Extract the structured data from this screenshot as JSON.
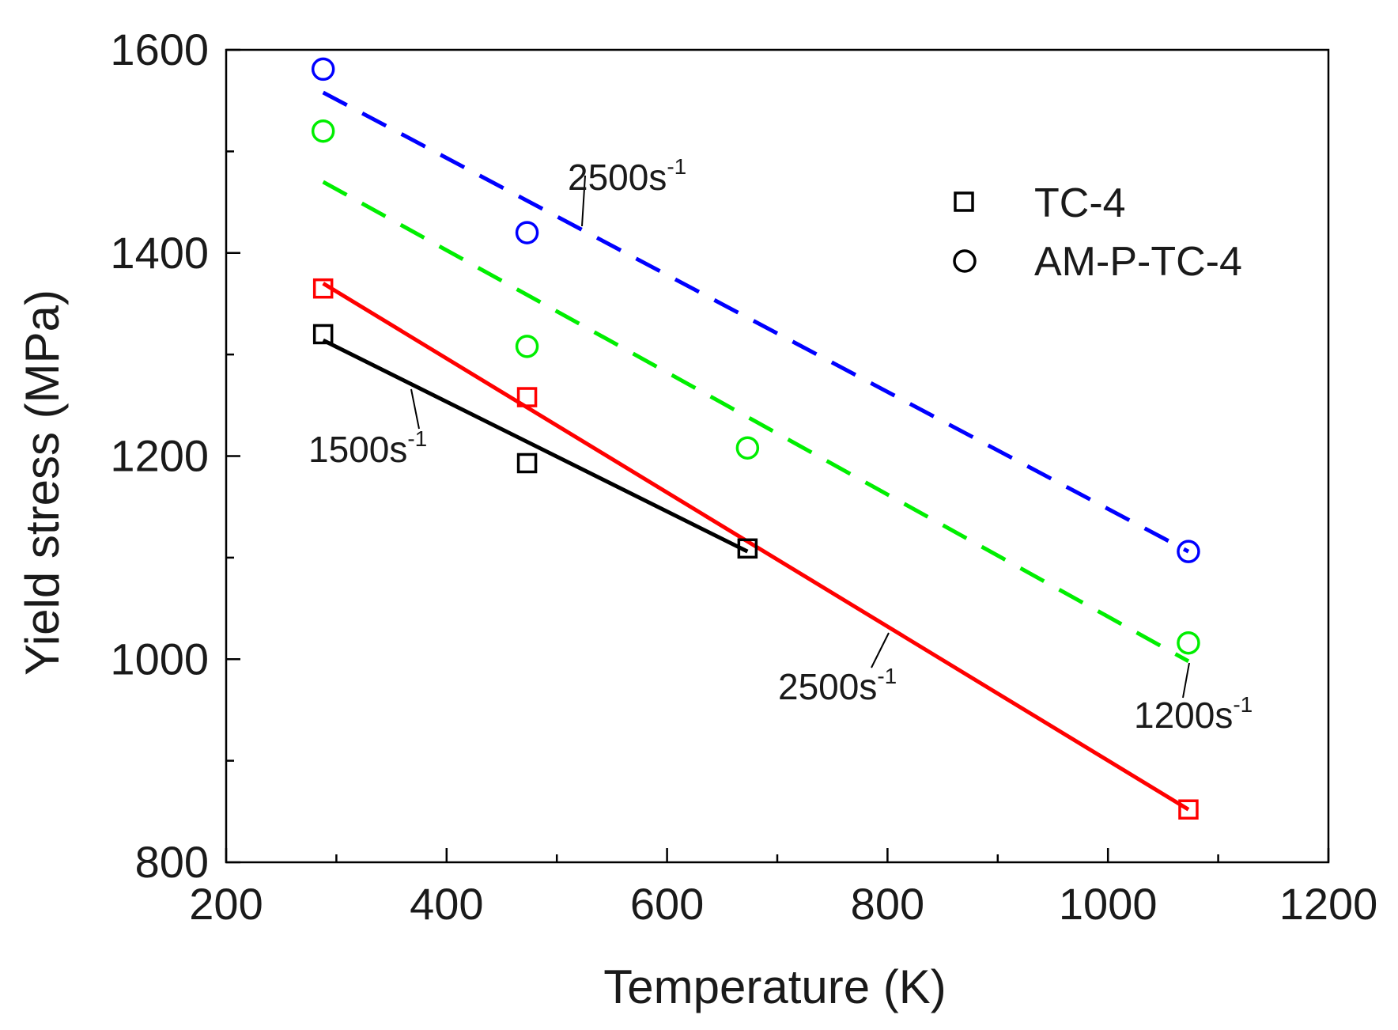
{
  "chart_data": {
    "type": "scatter",
    "title": "",
    "xlabel": "Temperature (K)",
    "ylabel": "Yield stress (MPa)",
    "xlim": [
      200,
      1200
    ],
    "ylim": [
      800,
      1600
    ],
    "x_ticks": [
      200,
      400,
      600,
      800,
      1000,
      1200
    ],
    "y_ticks": [
      800,
      1000,
      1200,
      1400,
      1600
    ],
    "x_tick_labels": [
      "200",
      "400",
      "600",
      "800",
      "1000",
      "1200"
    ],
    "y_tick_labels": [
      "800",
      "1000",
      "1200",
      "1400",
      "1600"
    ],
    "grid": false,
    "legend": {
      "position": "top-right",
      "entries": [
        {
          "label": "TC-4",
          "marker": "square"
        },
        {
          "label": "AM-P-TC-4",
          "marker": "circle"
        }
      ]
    },
    "series": [
      {
        "name": "TC-4 1500s-1",
        "material": "TC-4",
        "marker": "square",
        "color": "#000000",
        "line": "solid",
        "points": [
          [
            288,
            1320
          ],
          [
            473,
            1193
          ],
          [
            673,
            1109
          ]
        ],
        "fit": [
          [
            288,
            1314
          ],
          [
            673,
            1106
          ]
        ]
      },
      {
        "name": "TC-4 2500s-1",
        "material": "TC-4",
        "marker": "square",
        "color": "#ff0000",
        "line": "solid",
        "points": [
          [
            288,
            1365
          ],
          [
            473,
            1258
          ],
          [
            1073,
            852
          ]
        ],
        "fit": [
          [
            288,
            1370
          ],
          [
            1073,
            852
          ]
        ]
      },
      {
        "name": "AM-P-TC-4 2500s-1",
        "material": "AM-P-TC-4",
        "marker": "circle",
        "color": "#0000ff",
        "line": "dashed",
        "points": [
          [
            288,
            1581
          ],
          [
            473,
            1420
          ],
          [
            1073,
            1106
          ]
        ],
        "fit": [
          [
            288,
            1558
          ],
          [
            1073,
            1106
          ]
        ]
      },
      {
        "name": "AM-P-TC-4 1200s-1",
        "material": "AM-P-TC-4",
        "marker": "circle",
        "color": "#00ee00",
        "line": "dashed",
        "points": [
          [
            288,
            1520
          ],
          [
            473,
            1308
          ],
          [
            673,
            1208
          ],
          [
            1073,
            1016
          ]
        ],
        "fit": [
          [
            288,
            1470
          ],
          [
            1073,
            998
          ]
        ]
      }
    ],
    "annotations": [
      {
        "base": "2500s",
        "sup": "-1",
        "target": "AM-P-TC-4 2500s-1"
      },
      {
        "base": "1500s",
        "sup": "-1",
        "target": "TC-4 1500s-1"
      },
      {
        "base": "2500s",
        "sup": "-1",
        "target": "TC-4 2500s-1"
      },
      {
        "base": "1200s",
        "sup": "-1",
        "target": "AM-P-TC-4 1200s-1"
      }
    ]
  }
}
